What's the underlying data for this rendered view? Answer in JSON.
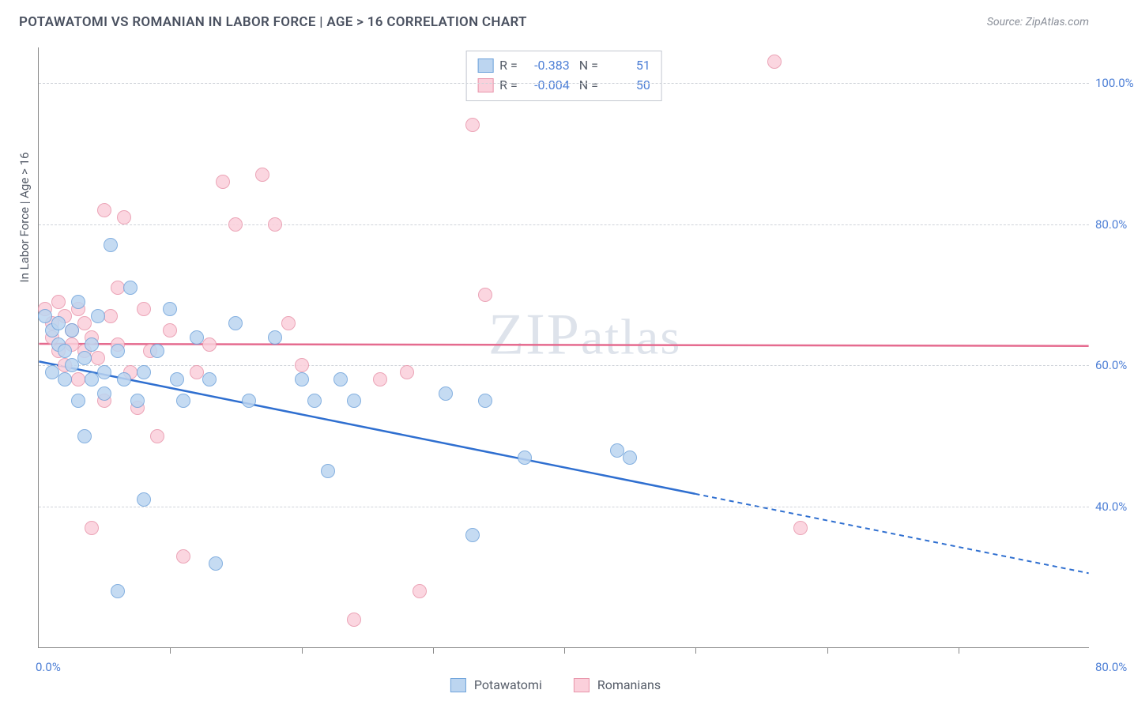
{
  "header": {
    "title": "POTAWATOMI VS ROMANIAN IN LABOR FORCE | AGE > 16 CORRELATION CHART",
    "source": "Source: ZipAtlas.com"
  },
  "watermark": "ZIPatlas",
  "yaxis": {
    "title": "In Labor Force | Age > 16",
    "ticks": [
      40,
      60,
      80,
      100
    ],
    "tick_labels": [
      "40.0%",
      "60.0%",
      "80.0%",
      "100.0%"
    ],
    "min": 20,
    "max": 105
  },
  "xaxis": {
    "min": 0,
    "max": 80,
    "tick_positions": [
      10,
      20,
      30,
      40,
      50,
      60,
      70
    ],
    "label_left": "0.0%",
    "label_right": "80.0%"
  },
  "series": {
    "potawatomi": {
      "label": "Potawatomi",
      "fill": "#bcd5f0",
      "stroke": "#6fa3db",
      "line_color": "#2f6fd0",
      "R": "-0.383",
      "N": "51",
      "trend": {
        "y_at_x0": 60.5,
        "y_at_x80": 30.5,
        "solid_until_x": 50
      },
      "points": [
        {
          "x": 0.5,
          "y": 67
        },
        {
          "x": 1,
          "y": 65
        },
        {
          "x": 1,
          "y": 59
        },
        {
          "x": 1.5,
          "y": 63
        },
        {
          "x": 1.5,
          "y": 66
        },
        {
          "x": 2,
          "y": 58
        },
        {
          "x": 2,
          "y": 62
        },
        {
          "x": 2.5,
          "y": 65
        },
        {
          "x": 2.5,
          "y": 60
        },
        {
          "x": 3,
          "y": 69
        },
        {
          "x": 3,
          "y": 55
        },
        {
          "x": 3.5,
          "y": 61
        },
        {
          "x": 3.5,
          "y": 50
        },
        {
          "x": 4,
          "y": 63
        },
        {
          "x": 4,
          "y": 58
        },
        {
          "x": 4.5,
          "y": 67
        },
        {
          "x": 5,
          "y": 59
        },
        {
          "x": 5,
          "y": 56
        },
        {
          "x": 5.5,
          "y": 77
        },
        {
          "x": 6,
          "y": 62
        },
        {
          "x": 6,
          "y": 28
        },
        {
          "x": 6.5,
          "y": 58
        },
        {
          "x": 7,
          "y": 71
        },
        {
          "x": 7.5,
          "y": 55
        },
        {
          "x": 8,
          "y": 59
        },
        {
          "x": 8,
          "y": 41
        },
        {
          "x": 9,
          "y": 62
        },
        {
          "x": 10,
          "y": 68
        },
        {
          "x": 10.5,
          "y": 58
        },
        {
          "x": 11,
          "y": 55
        },
        {
          "x": 12,
          "y": 64
        },
        {
          "x": 13,
          "y": 58
        },
        {
          "x": 13.5,
          "y": 32
        },
        {
          "x": 15,
          "y": 66
        },
        {
          "x": 16,
          "y": 55
        },
        {
          "x": 18,
          "y": 64
        },
        {
          "x": 20,
          "y": 58
        },
        {
          "x": 21,
          "y": 55
        },
        {
          "x": 22,
          "y": 45
        },
        {
          "x": 23,
          "y": 58
        },
        {
          "x": 24,
          "y": 55
        },
        {
          "x": 31,
          "y": 56
        },
        {
          "x": 33,
          "y": 36
        },
        {
          "x": 34,
          "y": 55
        },
        {
          "x": 37,
          "y": 47
        },
        {
          "x": 44,
          "y": 48
        },
        {
          "x": 45,
          "y": 47
        }
      ]
    },
    "romanians": {
      "label": "Romanians",
      "fill": "#fbd0db",
      "stroke": "#e895ab",
      "line_color": "#e56b8f",
      "R": "-0.004",
      "N": "50",
      "trend": {
        "y_at_x0": 63,
        "y_at_x80": 62.7,
        "solid_until_x": 80
      },
      "points": [
        {
          "x": 0.5,
          "y": 68
        },
        {
          "x": 1,
          "y": 66
        },
        {
          "x": 1,
          "y": 64
        },
        {
          "x": 1.5,
          "y": 69
        },
        {
          "x": 1.5,
          "y": 62
        },
        {
          "x": 2,
          "y": 67
        },
        {
          "x": 2,
          "y": 60
        },
        {
          "x": 2.5,
          "y": 65
        },
        {
          "x": 2.5,
          "y": 63
        },
        {
          "x": 3,
          "y": 68
        },
        {
          "x": 3,
          "y": 58
        },
        {
          "x": 3.5,
          "y": 62
        },
        {
          "x": 3.5,
          "y": 66
        },
        {
          "x": 4,
          "y": 37
        },
        {
          "x": 4,
          "y": 64
        },
        {
          "x": 4.5,
          "y": 61
        },
        {
          "x": 5,
          "y": 82
        },
        {
          "x": 5,
          "y": 55
        },
        {
          "x": 5.5,
          "y": 67
        },
        {
          "x": 6,
          "y": 63
        },
        {
          "x": 6,
          "y": 71
        },
        {
          "x": 6.5,
          "y": 81
        },
        {
          "x": 7,
          "y": 59
        },
        {
          "x": 7.5,
          "y": 54
        },
        {
          "x": 8,
          "y": 68
        },
        {
          "x": 8.5,
          "y": 62
        },
        {
          "x": 9,
          "y": 50
        },
        {
          "x": 10,
          "y": 65
        },
        {
          "x": 11,
          "y": 33
        },
        {
          "x": 12,
          "y": 59
        },
        {
          "x": 13,
          "y": 63
        },
        {
          "x": 14,
          "y": 86
        },
        {
          "x": 15,
          "y": 80
        },
        {
          "x": 17,
          "y": 87
        },
        {
          "x": 18,
          "y": 80
        },
        {
          "x": 19,
          "y": 66
        },
        {
          "x": 20,
          "y": 60
        },
        {
          "x": 24,
          "y": 24
        },
        {
          "x": 26,
          "y": 58
        },
        {
          "x": 28,
          "y": 59
        },
        {
          "x": 29,
          "y": 28
        },
        {
          "x": 33,
          "y": 94
        },
        {
          "x": 34,
          "y": 70
        },
        {
          "x": 56,
          "y": 103
        },
        {
          "x": 58,
          "y": 37
        }
      ]
    }
  },
  "colors": {
    "text_muted": "#555c68",
    "text_blue": "#4d7fd6",
    "grid": "#d0d4da",
    "axis": "#888888",
    "bg": "#ffffff"
  },
  "legend_swatch_size": 20,
  "point_radius": 9
}
